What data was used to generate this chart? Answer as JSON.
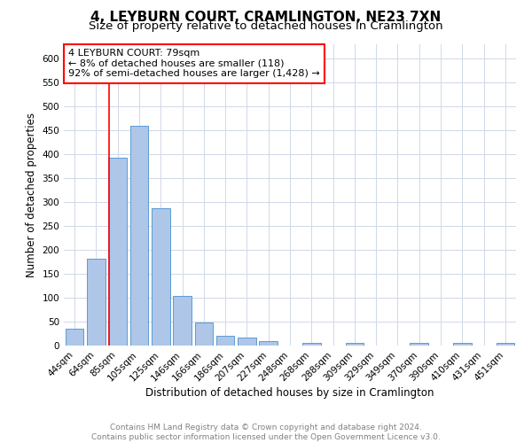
{
  "title": "4, LEYBURN COURT, CRAMLINGTON, NE23 7XN",
  "subtitle": "Size of property relative to detached houses in Cramlington",
  "xlabel": "Distribution of detached houses by size in Cramlington",
  "ylabel": "Number of detached properties",
  "footnote1": "Contains HM Land Registry data © Crown copyright and database right 2024.",
  "footnote2": "Contains public sector information licensed under the Open Government Licence v3.0.",
  "categories": [
    "44sqm",
    "64sqm",
    "85sqm",
    "105sqm",
    "125sqm",
    "146sqm",
    "166sqm",
    "186sqm",
    "207sqm",
    "227sqm",
    "248sqm",
    "268sqm",
    "288sqm",
    "309sqm",
    "329sqm",
    "349sqm",
    "370sqm",
    "390sqm",
    "410sqm",
    "431sqm",
    "451sqm"
  ],
  "values": [
    35,
    182,
    393,
    460,
    288,
    103,
    48,
    20,
    16,
    10,
    0,
    5,
    0,
    5,
    0,
    0,
    5,
    0,
    5,
    0,
    5
  ],
  "bar_color": "#aec6e8",
  "bar_edge_color": "#5b9bd5",
  "annotation_box_text": "4 LEYBURN COURT: 79sqm\n← 8% of detached houses are smaller (118)\n92% of semi-detached houses are larger (1,428) →",
  "annotation_box_color": "white",
  "annotation_box_edge_color": "red",
  "vline_color": "red",
  "vline_x": 1.6,
  "ylim": [
    0,
    630
  ],
  "yticks": [
    0,
    50,
    100,
    150,
    200,
    250,
    300,
    350,
    400,
    450,
    500,
    550,
    600
  ],
  "grid_color": "#d0d8e8",
  "title_fontsize": 11,
  "subtitle_fontsize": 9.5,
  "axis_label_fontsize": 8.5,
  "tick_fontsize": 7.5,
  "footnote_fontsize": 6.5,
  "annotation_fontsize": 8
}
